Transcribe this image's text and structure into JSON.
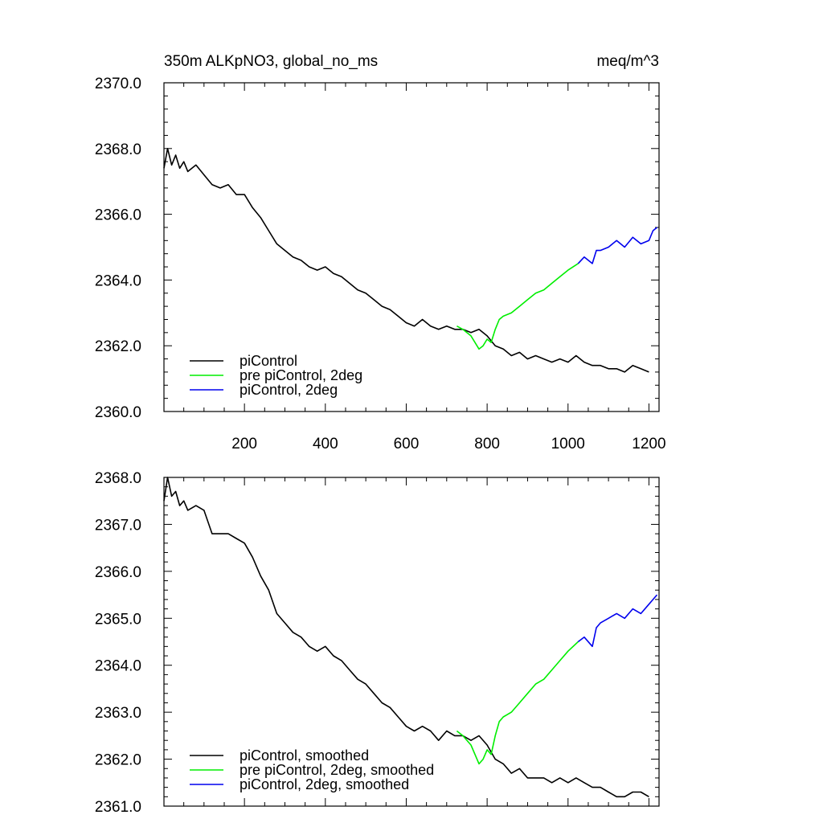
{
  "colors": {
    "piControl": "#000000",
    "pre_piControl_2deg": "#00ee00",
    "piControl_2deg": "#0000ee"
  },
  "chart_data": [
    {
      "type": "line",
      "title_left": "350m ALKpNO3, global_no_ms",
      "title_right": "meq/m^3",
      "xlim": [
        1,
        1225
      ],
      "ylim": [
        2360,
        2370
      ],
      "xticks": [
        200,
        400,
        600,
        800,
        1000,
        1200
      ],
      "xtick_labels": [
        "200",
        "400",
        "600",
        "800",
        "1000",
        "1200"
      ],
      "yticks": [
        2360,
        2362,
        2364,
        2366,
        2368,
        2370
      ],
      "ytick_labels": [
        "2360.0",
        "2362.0",
        "2364.0",
        "2366.0",
        "2368.0",
        "2370.0"
      ],
      "legend_position": "bottom-left",
      "series": [
        {
          "name": "piControl",
          "color": "#000000",
          "x": [
            1,
            10,
            20,
            30,
            40,
            50,
            60,
            80,
            100,
            120,
            140,
            160,
            180,
            200,
            220,
            240,
            260,
            280,
            300,
            320,
            340,
            360,
            380,
            400,
            420,
            440,
            460,
            480,
            500,
            520,
            540,
            560,
            580,
            600,
            620,
            640,
            660,
            680,
            700,
            720,
            740,
            760,
            780,
            800,
            820,
            840,
            860,
            880,
            900,
            920,
            940,
            960,
            980,
            1000,
            1020,
            1040,
            1060,
            1080,
            1100,
            1120,
            1140,
            1160,
            1180,
            1200
          ],
          "y": [
            2367.4,
            2368.0,
            2367.5,
            2367.8,
            2367.4,
            2367.6,
            2367.3,
            2367.5,
            2367.2,
            2366.9,
            2366.8,
            2366.9,
            2366.6,
            2366.6,
            2366.2,
            2365.9,
            2365.5,
            2365.1,
            2364.9,
            2364.7,
            2364.6,
            2364.4,
            2364.3,
            2364.4,
            2364.2,
            2364.1,
            2363.9,
            2363.7,
            2363.6,
            2363.4,
            2363.2,
            2363.1,
            2362.9,
            2362.7,
            2362.6,
            2362.8,
            2362.6,
            2362.5,
            2362.6,
            2362.5,
            2362.5,
            2362.4,
            2362.5,
            2362.3,
            2362.0,
            2361.9,
            2361.7,
            2361.8,
            2361.6,
            2361.7,
            2361.6,
            2361.5,
            2361.6,
            2361.5,
            2361.7,
            2361.5,
            2361.4,
            2361.4,
            2361.3,
            2361.3,
            2361.2,
            2361.4,
            2361.3,
            2361.2
          ]
        },
        {
          "name": "pre piControl, 2deg",
          "color": "#00ee00",
          "x": [
            725,
            740,
            760,
            780,
            790,
            800,
            810,
            820,
            830,
            840,
            860,
            880,
            900,
            920,
            940,
            960,
            980,
            1000,
            1025
          ],
          "y": [
            2362.6,
            2362.5,
            2362.3,
            2361.9,
            2362.0,
            2362.2,
            2362.1,
            2362.5,
            2362.8,
            2362.9,
            2363.0,
            2363.2,
            2363.4,
            2363.6,
            2363.7,
            2363.9,
            2364.1,
            2364.3,
            2364.5
          ]
        },
        {
          "name": "piControl, 2deg",
          "color": "#0000ee",
          "x": [
            1025,
            1040,
            1060,
            1070,
            1080,
            1100,
            1120,
            1140,
            1160,
            1180,
            1200,
            1210,
            1220
          ],
          "y": [
            2364.5,
            2364.7,
            2364.5,
            2364.9,
            2364.9,
            2365.0,
            2365.2,
            2365.0,
            2365.3,
            2365.1,
            2365.2,
            2365.5,
            2365.6
          ]
        }
      ]
    },
    {
      "type": "line",
      "xlim": [
        1,
        1225
      ],
      "ylim": [
        2361,
        2368
      ],
      "xticks": [
        200,
        400,
        600,
        800,
        1000,
        1200
      ],
      "yticks": [
        2361,
        2362,
        2363,
        2364,
        2365,
        2366,
        2367,
        2368
      ],
      "ytick_labels": [
        "2361.0",
        "2362.0",
        "2363.0",
        "2364.0",
        "2365.0",
        "2366.0",
        "2367.0",
        "2368.0"
      ],
      "legend_position": "bottom-left",
      "series": [
        {
          "name": "piControl, smoothed",
          "color": "#000000",
          "x": [
            1,
            10,
            20,
            30,
            40,
            50,
            60,
            80,
            100,
            120,
            140,
            160,
            180,
            200,
            220,
            240,
            260,
            280,
            300,
            320,
            340,
            360,
            380,
            400,
            420,
            440,
            460,
            480,
            500,
            520,
            540,
            560,
            580,
            600,
            620,
            640,
            660,
            680,
            700,
            720,
            740,
            760,
            780,
            800,
            820,
            840,
            860,
            880,
            900,
            920,
            940,
            960,
            980,
            1000,
            1020,
            1040,
            1060,
            1080,
            1100,
            1120,
            1140,
            1160,
            1180,
            1200
          ],
          "y": [
            2367.5,
            2368.0,
            2367.6,
            2367.7,
            2367.4,
            2367.5,
            2367.3,
            2367.4,
            2367.3,
            2366.8,
            2366.8,
            2366.8,
            2366.7,
            2366.6,
            2366.3,
            2365.9,
            2365.6,
            2365.1,
            2364.9,
            2364.7,
            2364.6,
            2364.4,
            2364.3,
            2364.4,
            2364.2,
            2364.1,
            2363.9,
            2363.7,
            2363.6,
            2363.4,
            2363.2,
            2363.1,
            2362.9,
            2362.7,
            2362.6,
            2362.7,
            2362.6,
            2362.4,
            2362.6,
            2362.5,
            2362.5,
            2362.4,
            2362.5,
            2362.3,
            2362.0,
            2361.9,
            2361.7,
            2361.8,
            2361.6,
            2361.6,
            2361.6,
            2361.5,
            2361.6,
            2361.5,
            2361.6,
            2361.5,
            2361.4,
            2361.4,
            2361.3,
            2361.2,
            2361.2,
            2361.3,
            2361.3,
            2361.2
          ]
        },
        {
          "name": "pre piControl, 2deg, smoothed",
          "color": "#00ee00",
          "x": [
            725,
            740,
            760,
            780,
            790,
            800,
            810,
            820,
            830,
            840,
            860,
            880,
            900,
            920,
            940,
            960,
            980,
            1000,
            1025
          ],
          "y": [
            2362.6,
            2362.5,
            2362.3,
            2361.9,
            2362.0,
            2362.2,
            2362.1,
            2362.5,
            2362.8,
            2362.9,
            2363.0,
            2363.2,
            2363.4,
            2363.6,
            2363.7,
            2363.9,
            2364.1,
            2364.3,
            2364.5
          ]
        },
        {
          "name": "piControl, 2deg, smoothed",
          "color": "#0000ee",
          "x": [
            1025,
            1040,
            1060,
            1070,
            1080,
            1100,
            1120,
            1140,
            1160,
            1180,
            1200,
            1210,
            1220
          ],
          "y": [
            2364.5,
            2364.6,
            2364.4,
            2364.8,
            2364.9,
            2365.0,
            2365.1,
            2365.0,
            2365.2,
            2365.1,
            2365.3,
            2365.4,
            2365.5
          ]
        }
      ]
    }
  ]
}
